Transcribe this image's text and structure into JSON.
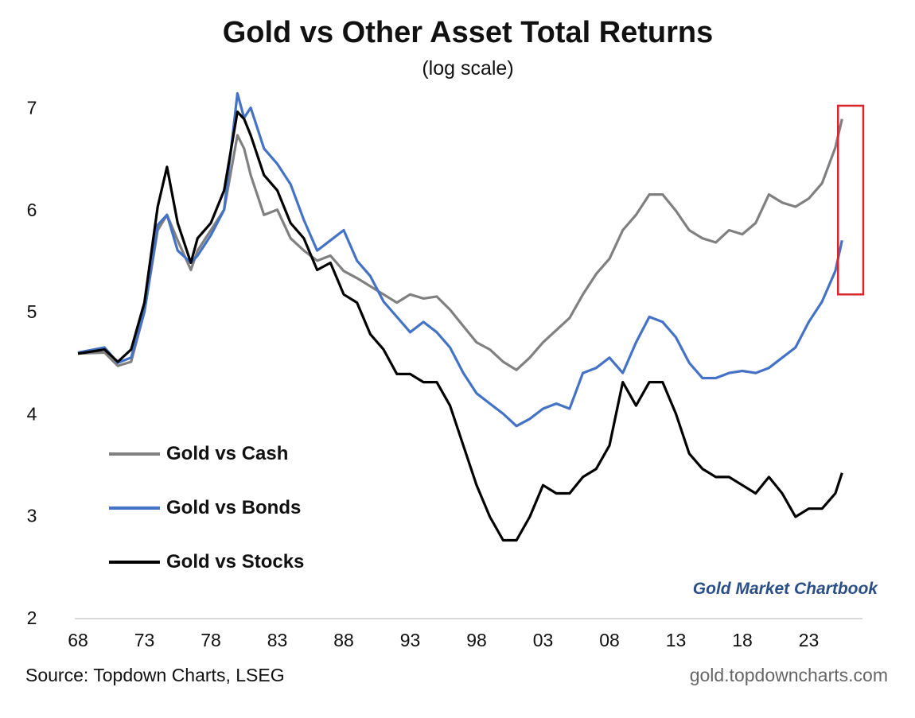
{
  "chart_data": {
    "type": "line",
    "title": "Gold vs Other Asset Total Returns",
    "subtitle": "(log scale)",
    "xlabel": "",
    "ylabel": "",
    "xlim": [
      1968,
      2027
    ],
    "ylim": [
      2,
      7
    ],
    "y_ticks": [
      "2",
      "3",
      "4",
      "5",
      "6",
      "7"
    ],
    "x_ticks": [
      "68",
      "73",
      "78",
      "83",
      "88",
      "93",
      "98",
      "03",
      "08",
      "13",
      "18",
      "23"
    ],
    "x_tick_years": [
      1968,
      1973,
      1978,
      1983,
      1988,
      1993,
      1998,
      2003,
      2008,
      2013,
      2018,
      2023
    ],
    "grid": false,
    "legend_position": "left",
    "x": [
      1968,
      1970,
      1971,
      1972,
      1973,
      1974,
      1974.7,
      1975.5,
      1976.5,
      1977,
      1978,
      1979,
      1980,
      1980.5,
      1981,
      1982,
      1983,
      1984,
      1985,
      1986,
      1987,
      1988,
      1989,
      1990,
      1991,
      1992,
      1993,
      1994,
      1995,
      1996,
      1997,
      1998,
      1999,
      2000,
      2001,
      2002,
      2003,
      2004,
      2005,
      2006,
      2007,
      2008,
      2009,
      2010,
      2011,
      2012,
      2013,
      2014,
      2015,
      2016,
      2017,
      2018,
      2019,
      2020,
      2021,
      2022,
      2023,
      2024,
      2025,
      2025.5
    ],
    "series": [
      {
        "name": "Gold vs Cash",
        "color": "#808080",
        "values": [
          4.59,
          4.6,
          4.47,
          4.51,
          5.0,
          5.8,
          5.95,
          5.7,
          5.41,
          5.6,
          5.8,
          6.0,
          6.73,
          6.6,
          6.34,
          5.95,
          6.0,
          5.72,
          5.6,
          5.5,
          5.55,
          5.4,
          5.33,
          5.25,
          5.17,
          5.09,
          5.17,
          5.13,
          5.15,
          5.02,
          4.86,
          4.7,
          4.63,
          4.51,
          4.43,
          4.55,
          4.7,
          4.82,
          4.94,
          5.17,
          5.37,
          5.52,
          5.8,
          5.95,
          6.15,
          6.15,
          5.99,
          5.8,
          5.72,
          5.68,
          5.8,
          5.76,
          5.87,
          6.15,
          6.07,
          6.03,
          6.11,
          6.26,
          6.61,
          6.89
        ]
      },
      {
        "name": "Gold vs Bonds",
        "color": "#4472c4",
        "values": [
          4.6,
          4.65,
          4.5,
          4.55,
          5.0,
          5.85,
          5.95,
          5.6,
          5.48,
          5.55,
          5.75,
          6.0,
          7.14,
          6.9,
          7.0,
          6.6,
          6.45,
          6.25,
          5.9,
          5.6,
          5.7,
          5.8,
          5.5,
          5.35,
          5.1,
          4.95,
          4.8,
          4.9,
          4.8,
          4.65,
          4.4,
          4.2,
          4.1,
          4.0,
          3.88,
          3.95,
          4.05,
          4.1,
          4.05,
          4.4,
          4.45,
          4.55,
          4.4,
          4.7,
          4.95,
          4.9,
          4.75,
          4.5,
          4.35,
          4.35,
          4.4,
          4.42,
          4.4,
          4.45,
          4.55,
          4.65,
          4.9,
          5.1,
          5.4,
          5.7
        ]
      },
      {
        "name": "Gold vs Stocks",
        "color": "#000000",
        "values": [
          4.59,
          4.63,
          4.51,
          4.63,
          5.09,
          6.03,
          6.42,
          5.87,
          5.48,
          5.72,
          5.87,
          6.19,
          6.96,
          6.89,
          6.73,
          6.34,
          6.19,
          5.87,
          5.72,
          5.41,
          5.48,
          5.17,
          5.09,
          4.78,
          4.63,
          4.39,
          4.39,
          4.31,
          4.31,
          4.08,
          3.69,
          3.3,
          2.99,
          2.76,
          2.76,
          2.99,
          3.3,
          3.22,
          3.22,
          3.38,
          3.46,
          3.69,
          4.31,
          4.08,
          4.31,
          4.31,
          4.0,
          3.61,
          3.46,
          3.38,
          3.38,
          3.3,
          3.22,
          3.38,
          3.22,
          2.99,
          3.07,
          3.07,
          3.22,
          3.42
        ]
      }
    ],
    "annotations": [
      {
        "type": "highlight-box",
        "color": "#d9252b",
        "x_range": [
          2025.2,
          2027.1
        ],
        "y_range": [
          5.17,
          7.02
        ]
      }
    ],
    "watermark": "Gold Market Chartbook",
    "source": "Source: Topdown Charts, LSEG",
    "site": "gold.topdowncharts.com"
  }
}
